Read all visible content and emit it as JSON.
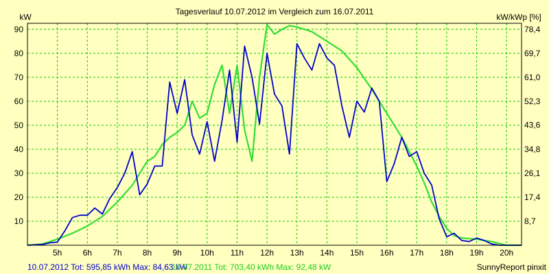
{
  "chart_data": {
    "type": "line",
    "title": "Tagesverlauf 10.07.2012 im Vergleich zum 16.07.2011",
    "ylabel_left": "kW",
    "ylabel_right": "kW/kWp [%]",
    "ylim": [
      0,
      92.5
    ],
    "ylim_right": [
      0,
      80.6
    ],
    "y_ticks": [
      10,
      20,
      30,
      40,
      50,
      60,
      70,
      80,
      90
    ],
    "y_ticks_right": [
      8.7,
      17.4,
      26.1,
      34.8,
      43.6,
      52.3,
      61.0,
      69.7,
      78.4
    ],
    "x_label_unit": "h",
    "x_ticks": [
      5,
      6,
      7,
      8,
      9,
      10,
      11,
      12,
      13,
      14,
      15,
      16,
      17,
      18,
      19,
      20
    ],
    "x_range": [
      4.0,
      20.5
    ],
    "grid": true,
    "colors": {
      "background": "#FFFFC0",
      "grid": "#00CC00",
      "series_2012": "#0000CC",
      "series_2011": "#33DD33"
    },
    "series": [
      {
        "name": "10.07.2012",
        "color": "#0000CC",
        "x": [
          4.0,
          4.5,
          4.75,
          5.0,
          5.25,
          5.5,
          5.75,
          6.0,
          6.25,
          6.5,
          6.75,
          7.0,
          7.25,
          7.5,
          7.75,
          8.0,
          8.25,
          8.5,
          8.75,
          9.0,
          9.25,
          9.5,
          9.75,
          10.0,
          10.25,
          10.5,
          10.75,
          11.0,
          11.25,
          11.5,
          11.75,
          12.0,
          12.25,
          12.5,
          12.75,
          13.0,
          13.25,
          13.5,
          13.75,
          14.0,
          14.25,
          14.5,
          14.75,
          15.0,
          15.25,
          15.5,
          15.75,
          16.0,
          16.25,
          16.5,
          16.75,
          17.0,
          17.25,
          17.5,
          17.75,
          18.0,
          18.25,
          18.5,
          18.75,
          19.0,
          19.25,
          19.5,
          19.75,
          20.0,
          20.5
        ],
        "values": [
          0,
          0.3,
          1,
          1.3,
          6,
          11.5,
          12.5,
          12.5,
          15.5,
          13,
          19.5,
          24,
          30,
          39,
          21,
          25.5,
          33,
          33,
          68,
          55,
          69,
          46,
          38,
          51.5,
          35,
          52,
          73,
          43,
          83,
          70,
          50.5,
          80,
          63,
          58,
          38,
          84,
          78,
          73,
          84,
          78,
          75,
          58,
          45,
          60,
          55.5,
          65.5,
          60,
          26.5,
          34,
          45,
          37,
          39,
          30,
          25,
          11,
          3.5,
          5,
          2,
          1.5,
          3,
          2,
          0.5,
          0,
          0,
          0
        ]
      },
      {
        "name": "16.07.2011",
        "color": "#33DD33",
        "x": [
          4.0,
          4.5,
          5.0,
          5.5,
          6.0,
          6.5,
          7.0,
          7.5,
          7.75,
          8.0,
          8.25,
          8.5,
          8.75,
          9.0,
          9.25,
          9.5,
          9.75,
          10.0,
          10.25,
          10.5,
          10.75,
          11.0,
          11.25,
          11.5,
          11.75,
          12.0,
          12.25,
          12.5,
          12.75,
          13.0,
          13.25,
          13.5,
          13.75,
          14.0,
          14.5,
          15.0,
          15.5,
          16.0,
          16.5,
          17.0,
          17.25,
          17.5,
          17.75,
          18.0,
          18.25,
          18.5,
          19.0,
          19.5,
          20.0,
          20.5
        ],
        "values": [
          0,
          0.5,
          2.5,
          5,
          8,
          12,
          18,
          25,
          30,
          35,
          37,
          42,
          45,
          47,
          50,
          60,
          53,
          55,
          67,
          75,
          55,
          75,
          48,
          35,
          70,
          92,
          88,
          90,
          91.5,
          91,
          90,
          89,
          87,
          85,
          81,
          74,
          65,
          55,
          45,
          33,
          26,
          18,
          12,
          7,
          4,
          3,
          2.5,
          1.5,
          0,
          0
        ]
      }
    ]
  },
  "footer": {
    "left_2012": "10.07.2012 Tot: 595,85 kWh Max: 84,63 kW",
    "left_2011": "16.07.2011 Tot: 703,40 kWh Max: 92,48 kW",
    "right": "SunnyReport pinxit"
  }
}
